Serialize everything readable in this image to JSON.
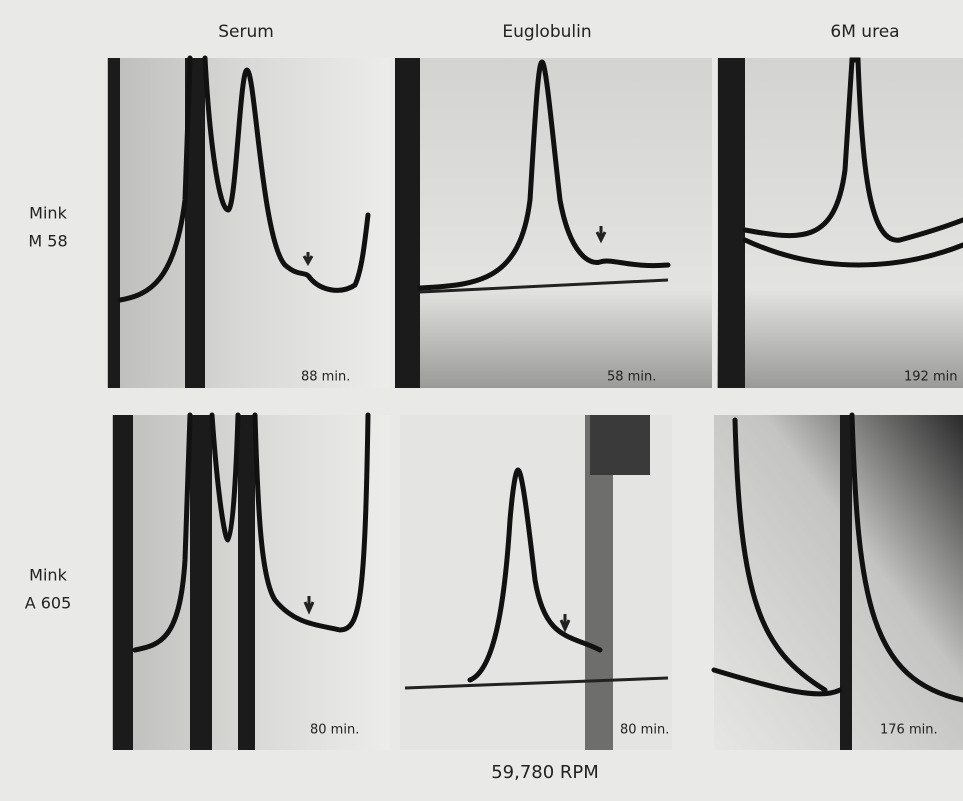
{
  "columns": [
    "Serum",
    "Euglobulin",
    "6M urea"
  ],
  "rows": [
    {
      "label": [
        "Mink",
        "M 58"
      ],
      "times": [
        "88 min.",
        "58 min.",
        "192 min"
      ]
    },
    {
      "label": [
        "Mink",
        "A 605"
      ],
      "times": [
        "80 min.",
        "80 min.",
        "176 min."
      ]
    }
  ],
  "footer": "59,780 RPM"
}
